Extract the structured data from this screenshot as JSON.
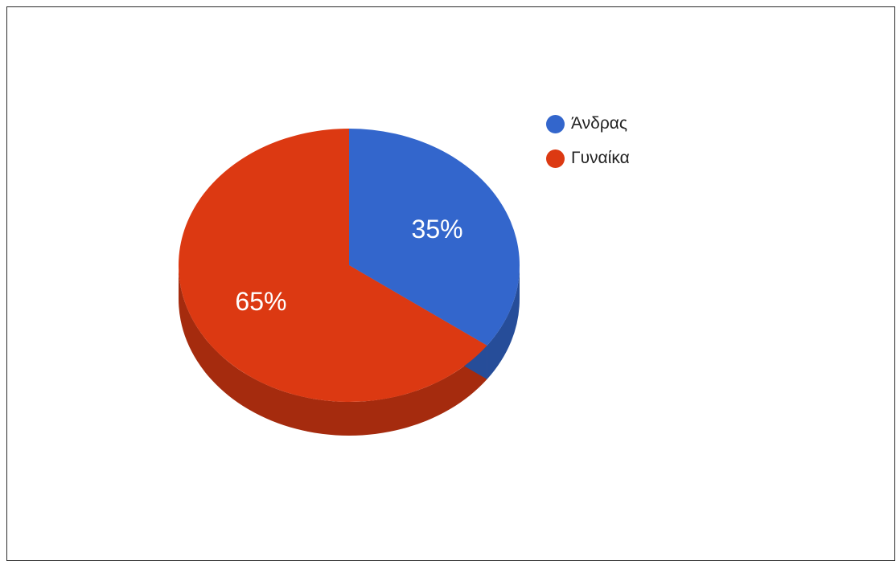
{
  "chart_data": {
    "type": "pie",
    "style": "3d",
    "categories": [
      "Άνδρας",
      "Γυναίκα"
    ],
    "values": [
      35,
      65
    ],
    "labels": [
      "35%",
      "65%"
    ],
    "colors": [
      "#3366cc",
      "#dc3912"
    ],
    "side_colors": [
      "#264d99",
      "#a52b0e"
    ],
    "legend_position": "right",
    "title": ""
  },
  "legend": {
    "items": [
      {
        "label": "Άνδρας",
        "color": "#3366cc"
      },
      {
        "label": "Γυναίκα",
        "color": "#dc3912"
      }
    ]
  }
}
